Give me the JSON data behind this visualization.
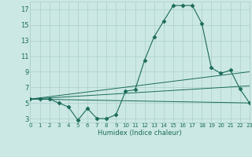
{
  "x": [
    0,
    1,
    2,
    3,
    4,
    5,
    6,
    7,
    8,
    9,
    10,
    11,
    12,
    13,
    14,
    15,
    16,
    17,
    18,
    19,
    20,
    21,
    22,
    23
  ],
  "line_main": [
    5.5,
    5.5,
    5.5,
    5.0,
    4.5,
    2.8,
    4.3,
    3.0,
    3.0,
    3.5,
    6.5,
    6.7,
    10.5,
    13.5,
    15.5,
    17.5,
    17.5,
    17.5,
    15.2,
    9.5,
    8.8,
    9.2,
    6.8,
    5.0
  ],
  "trend1_x": [
    0,
    23
  ],
  "trend1_y": [
    5.5,
    5.0
  ],
  "trend2_x": [
    0,
    23
  ],
  "trend2_y": [
    5.5,
    9.0
  ],
  "trend3_x": [
    0,
    23
  ],
  "trend3_y": [
    5.5,
    7.2
  ],
  "color": "#1a6b5a",
  "bg_color": "#cce8e4",
  "grid_color": "#aacfcb",
  "xlabel": "Humidex (Indice chaleur)",
  "yticks": [
    3,
    5,
    7,
    9,
    11,
    13,
    15,
    17
  ],
  "xticks": [
    0,
    1,
    2,
    3,
    4,
    5,
    6,
    7,
    8,
    9,
    10,
    11,
    12,
    13,
    14,
    15,
    16,
    17,
    18,
    19,
    20,
    21,
    22,
    23
  ],
  "xlim": [
    0,
    23
  ],
  "ylim": [
    2.5,
    18.0
  ]
}
